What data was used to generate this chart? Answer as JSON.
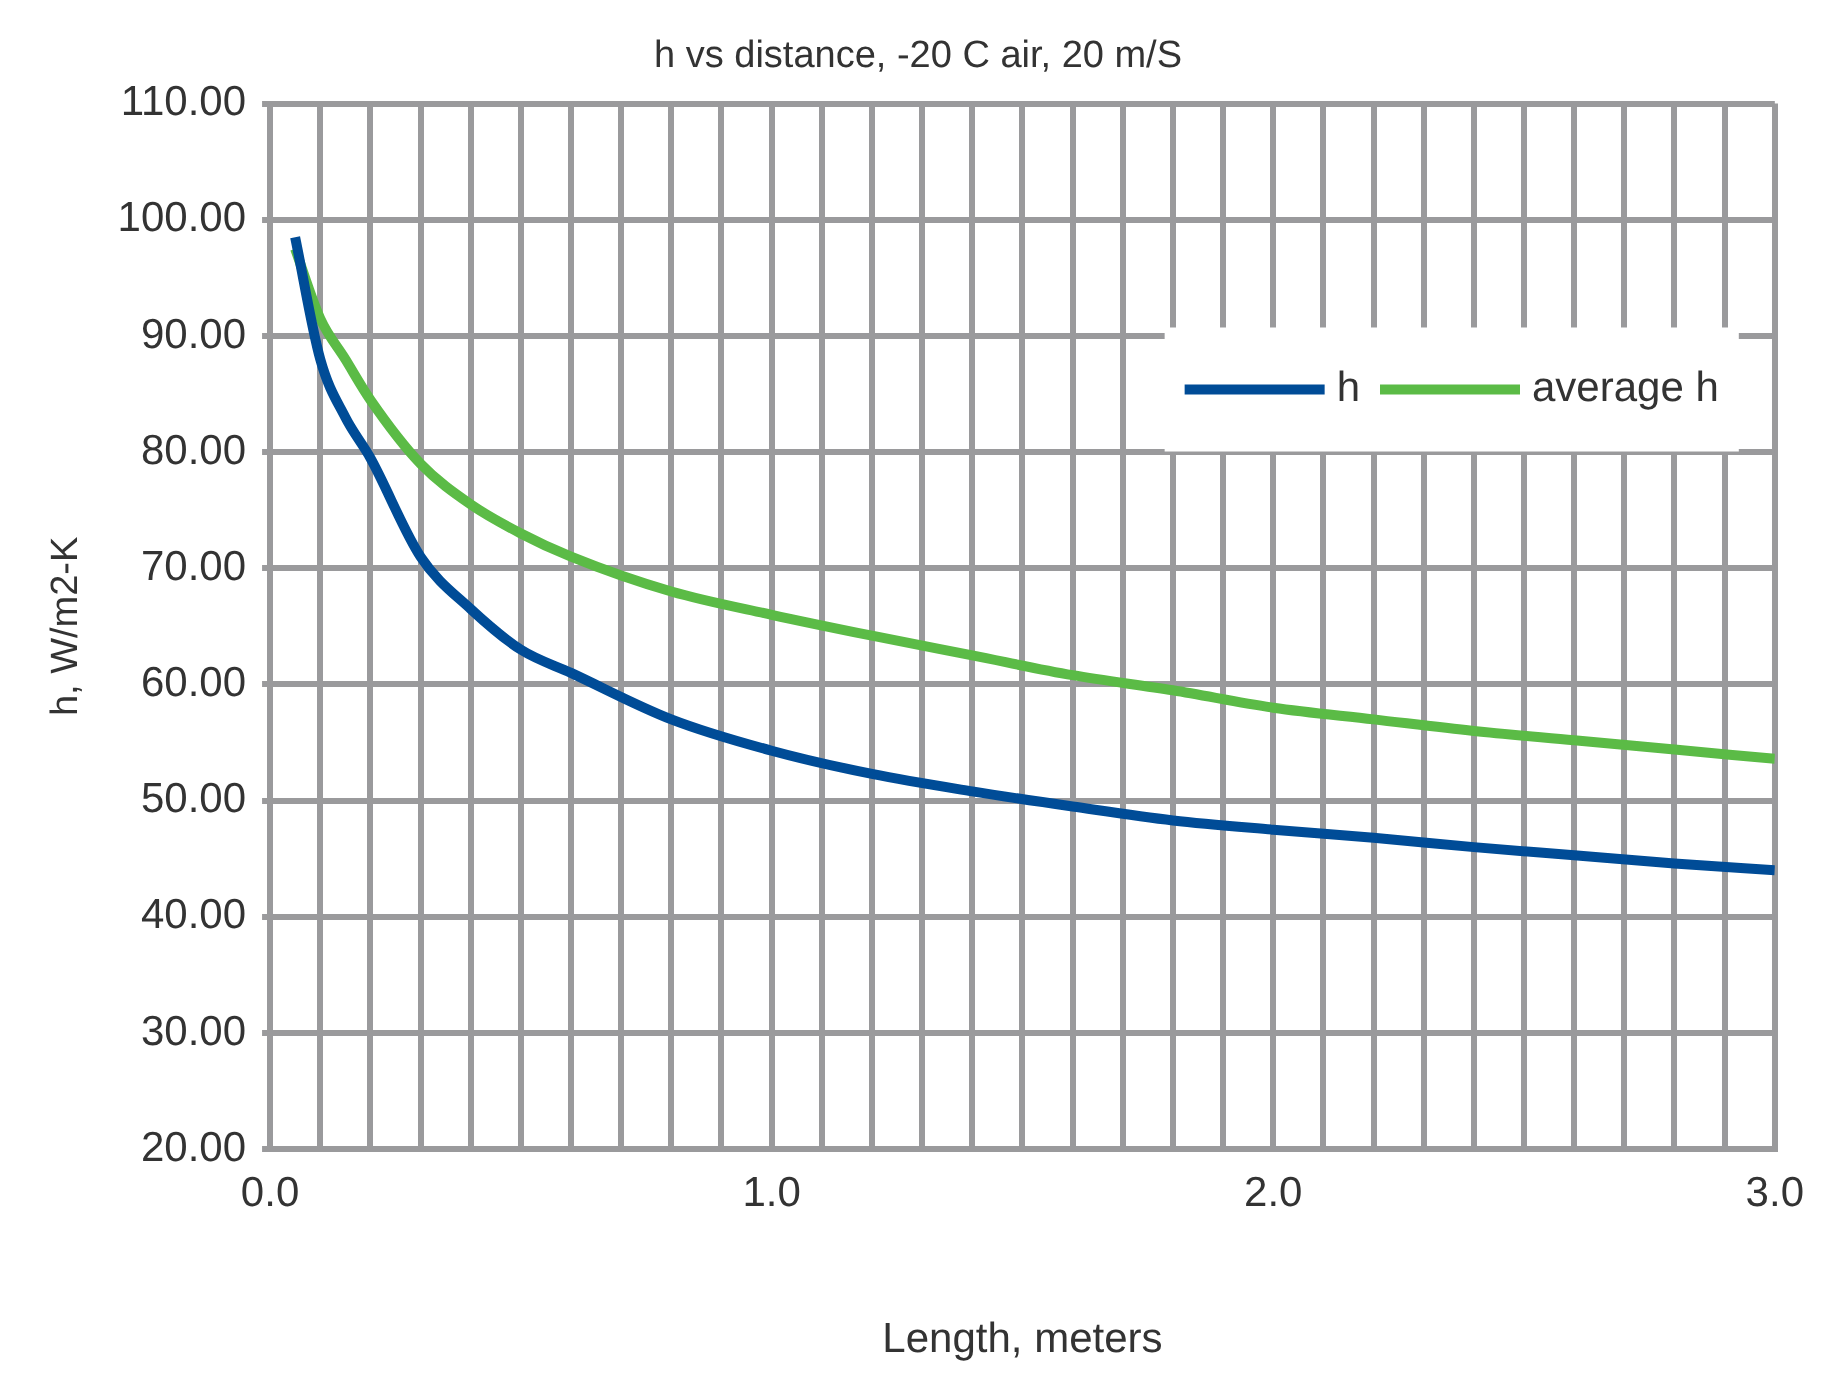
{
  "chart_data": {
    "type": "line",
    "title": "h vs distance, -20 C air, 20 m/S",
    "xlabel": "Length, meters",
    "ylabel": "h, W/m2-K",
    "x": [
      0.05,
      0.1,
      0.15,
      0.2,
      0.3,
      0.4,
      0.5,
      0.6,
      0.8,
      1.0,
      1.2,
      1.4,
      1.6,
      1.8,
      2.0,
      2.2,
      2.4,
      2.6,
      2.8,
      3.0
    ],
    "series": [
      {
        "name": "h",
        "color": "#004c97",
        "values": [
          98.5,
          88,
          83,
          79.5,
          71,
          66.5,
          63,
          61,
          57,
          54.3,
          52.3,
          50.8,
          49.5,
          48.3,
          47.5,
          46.8,
          46,
          45.3,
          44.6,
          44
        ]
      },
      {
        "name": "average h",
        "color": "#5bbb46",
        "values": [
          97.5,
          91.5,
          88,
          84.5,
          79,
          75.5,
          73,
          71,
          68,
          66,
          64.2,
          62.5,
          60.8,
          59.5,
          58,
          57,
          56,
          55.2,
          54.4,
          53.6
        ]
      }
    ],
    "xlim": [
      0,
      3
    ],
    "xticks": [
      {
        "value": 0,
        "label": "0.0"
      },
      {
        "value": 0.1,
        "label": null
      },
      {
        "value": 0.2,
        "label": null
      },
      {
        "value": 0.3,
        "label": null
      },
      {
        "value": 0.4,
        "label": null
      },
      {
        "value": 0.5,
        "label": null
      },
      {
        "value": 0.6,
        "label": null
      },
      {
        "value": 0.7,
        "label": null
      },
      {
        "value": 0.8,
        "label": null
      },
      {
        "value": 0.9,
        "label": null
      },
      {
        "value": 1,
        "label": "1.0"
      },
      {
        "value": 1.1,
        "label": null
      },
      {
        "value": 1.2,
        "label": null
      },
      {
        "value": 1.3,
        "label": null
      },
      {
        "value": 1.4,
        "label": null
      },
      {
        "value": 1.5,
        "label": null
      },
      {
        "value": 1.6,
        "label": null
      },
      {
        "value": 1.7,
        "label": null
      },
      {
        "value": 1.8,
        "label": null
      },
      {
        "value": 1.9,
        "label": null
      },
      {
        "value": 2,
        "label": "2.0"
      },
      {
        "value": 2.1,
        "label": null
      },
      {
        "value": 2.2,
        "label": null
      },
      {
        "value": 2.3,
        "label": null
      },
      {
        "value": 2.4,
        "label": null
      },
      {
        "value": 2.5,
        "label": null
      },
      {
        "value": 2.6,
        "label": null
      },
      {
        "value": 2.7,
        "label": null
      },
      {
        "value": 2.8,
        "label": null
      },
      {
        "value": 2.9,
        "label": null
      },
      {
        "value": 3,
        "label": "3.0"
      }
    ],
    "ylim": [
      20,
      110
    ],
    "yticks": [
      {
        "value": 20,
        "label": "20.00"
      },
      {
        "value": 30,
        "label": "30.00"
      },
      {
        "value": 40,
        "label": "40.00"
      },
      {
        "value": 50,
        "label": "50.00"
      },
      {
        "value": 60,
        "label": "60.00"
      },
      {
        "value": 70,
        "label": "70.00"
      },
      {
        "value": 80,
        "label": "80.00"
      },
      {
        "value": 90,
        "label": "90.00"
      },
      {
        "value": 100,
        "label": "100.00"
      },
      {
        "value": 110,
        "label": "110.00"
      }
    ],
    "grid": true,
    "legend": "top right",
    "marker": "none",
    "line_style": "solid"
  }
}
